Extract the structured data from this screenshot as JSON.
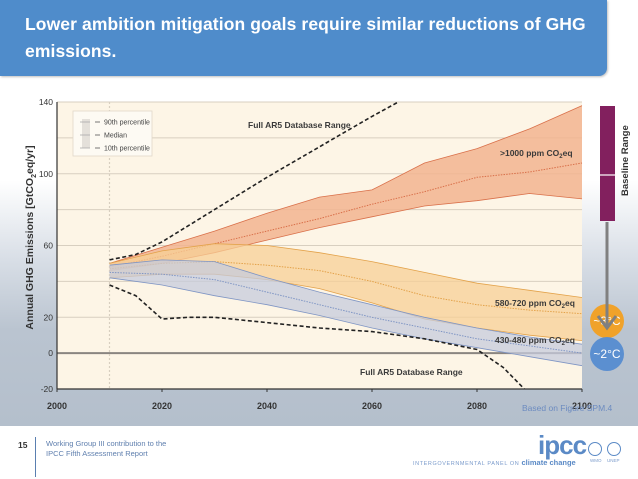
{
  "slide": {
    "title": "Lower ambition mitigation goals require similar reductions of GHG emissions.",
    "source_note": "Based on Figure SPM.4",
    "page_number": "15",
    "footer_line1": "Working Group III contribution to the",
    "footer_line2": "IPCC Fifth Assessment Report",
    "logo_text": "ipcc",
    "logo_subtext": "INTERGOVERNMENTAL PANEL ON",
    "logo_subtext_bold": "climate change",
    "partner_logos": [
      "WMO",
      "UNEP"
    ]
  },
  "colors": {
    "title_bg": "#4f8ccb",
    "plot_bg": "#fdf5e6",
    "band_high": "#f2b48f",
    "band_high_line": "#d9704a",
    "band_mid": "#f7cf95",
    "band_mid_line": "#e3a24a",
    "band_low": "#c5cbdc",
    "band_low_line": "#7f95c4",
    "baseline_bar": "#82205e",
    "circle_3c": "#f0a22a",
    "circle_2c": "#5b8fd0",
    "arrow": "#808080"
  },
  "chart_data": {
    "type": "area",
    "title": "",
    "xlabel": "",
    "ylabel": "Annual GHG Emissions [GtCO2eq/yr]",
    "xlim": [
      2000,
      2100
    ],
    "ylim": [
      -20,
      140
    ],
    "x_ticks": [
      2000,
      2020,
      2040,
      2060,
      2080,
      2100
    ],
    "y_ticks": [
      140,
      100,
      60,
      20,
      0,
      -20
    ],
    "y_gridlines": [
      140,
      120,
      100,
      80,
      60,
      40,
      20,
      0,
      -20
    ],
    "grid": true,
    "legend_position": "top-left",
    "legend": [
      "90th percentile",
      "Median",
      "10th percentile"
    ],
    "x": [
      2010,
      2020,
      2030,
      2040,
      2050,
      2060,
      2070,
      2080,
      2090,
      2100
    ],
    "series": [
      {
        "name": ">1000 ppm CO2eq",
        "label": ">1000 ppm CO₂eq",
        "p90": [
          50,
          59,
          68,
          78,
          87,
          91,
          106,
          114,
          125,
          138
        ],
        "median": [
          48,
          54,
          61,
          68,
          75,
          83,
          90,
          98,
          101,
          106
        ],
        "p10": [
          46,
          50,
          56,
          63,
          70,
          76,
          82,
          85,
          89,
          86
        ]
      },
      {
        "name": "580-720 ppm CO2eq",
        "label": "580-720 ppm CO₂eq",
        "p90": [
          50,
          57,
          61,
          60,
          56,
          51,
          45,
          39,
          35,
          31
        ],
        "median": [
          47,
          50,
          51,
          49,
          46,
          40,
          32,
          27,
          24,
          22
        ],
        "p10": [
          42,
          44,
          44,
          41,
          36,
          28,
          19,
          14,
          10,
          7
        ]
      },
      {
        "name": "430-480 ppm CO2eq",
        "label": "430-480 ppm CO₂eq",
        "p90": [
          49,
          52,
          51,
          42,
          34,
          27,
          20,
          14,
          9,
          5
        ],
        "median": [
          45,
          44,
          41,
          34,
          27,
          20,
          14,
          8,
          4,
          0
        ],
        "p10": [
          42,
          38,
          32,
          27,
          21,
          14,
          8,
          3,
          -2,
          -7
        ]
      }
    ],
    "database_range": {
      "label": "Full AR5 Database Range",
      "upper": {
        "x": [
          2010,
          2015,
          2020,
          2030,
          2040,
          2050,
          2060,
          2065
        ],
        "y": [
          52,
          55,
          62,
          80,
          98,
          115,
          132,
          140
        ]
      },
      "lower": {
        "x": [
          2010,
          2015,
          2020,
          2025,
          2030,
          2040,
          2050,
          2060,
          2070,
          2080,
          2085,
          2089
        ],
        "y": [
          38,
          32,
          19,
          20,
          20,
          17,
          14,
          12,
          8,
          2,
          -8,
          -20
        ]
      }
    },
    "side_annotations": {
      "baseline_label": "Baseline Range",
      "circle_upper": "~3°C",
      "circle_lower": "~2°C"
    }
  }
}
